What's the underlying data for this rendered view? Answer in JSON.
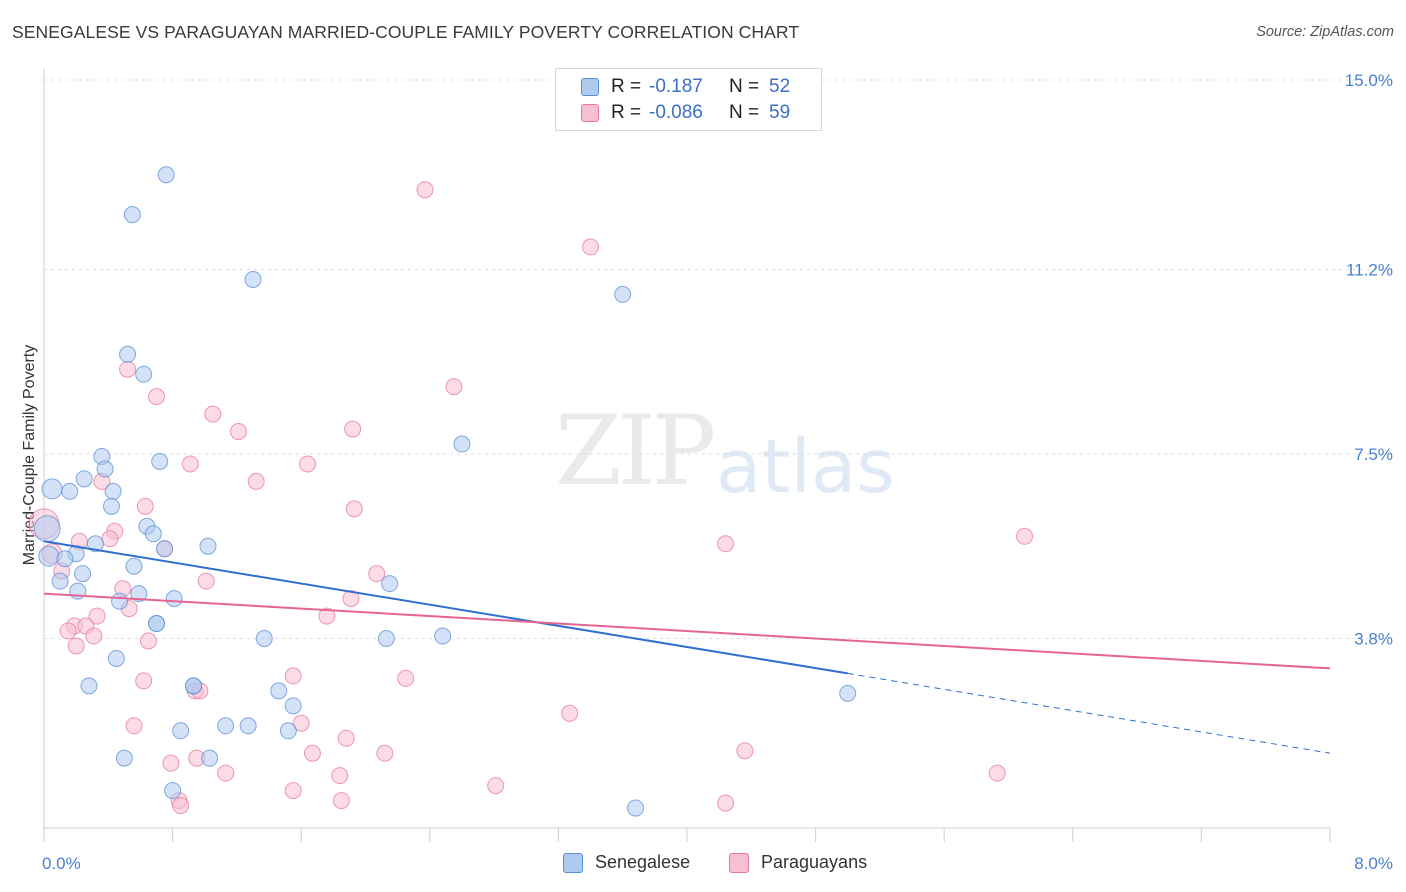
{
  "header": {
    "title": "SENEGALESE VS PARAGUAYAN MARRIED-COUPLE FAMILY POVERTY CORRELATION CHART",
    "source": "Source: ZipAtlas.com"
  },
  "watermark": {
    "zip": "ZIP",
    "atlas": "atlas"
  },
  "legend_top": [
    {
      "key": "R =",
      "r": "-0.187",
      "n_label": "N =",
      "n": "52",
      "color": "#a9c8f0"
    },
    {
      "key": "R =",
      "r": "-0.086",
      "n_label": "N =",
      "n": "59",
      "color": "#f5b8cc"
    }
  ],
  "legend_bottom": [
    {
      "label": "Senegalese",
      "color": "#a9c8f0"
    },
    {
      "label": "Paraguayans",
      "color": "#f5b8cc"
    }
  ],
  "colors": {
    "senegalese_fill": "#aecbef",
    "senegalese_stroke": "#5b8fd6",
    "senegalese_line": "#2f6fd0",
    "paraguayan_fill": "#f7bfd1",
    "paraguayan_stroke": "#e7789c",
    "paraguayan_line": "#e46592",
    "tick_label": "#4a7fd0",
    "grid": "#dcdcdc"
  },
  "chart_data": {
    "type": "scatter",
    "title": "SENEGALESE VS PARAGUAYAN MARRIED-COUPLE FAMILY POVERTY CORRELATION CHART",
    "xlabel": "",
    "ylabel": "Married-Couple Family Poverty",
    "xlim": [
      0,
      8.0
    ],
    "ylim": [
      0,
      15.0
    ],
    "x_tick_labels": [
      {
        "value": 0.0,
        "label": "0.0%"
      },
      {
        "value": 8.0,
        "label": "8.0%"
      }
    ],
    "y_tick_labels": [
      {
        "value": 3.8,
        "label": "3.8%"
      },
      {
        "value": 7.5,
        "label": "7.5%"
      },
      {
        "value": 11.2,
        "label": "11.2%"
      },
      {
        "value": 15.0,
        "label": "15.0%"
      }
    ],
    "x_minor_ticks": [
      0,
      0.8,
      1.6,
      2.4,
      3.2,
      4.0,
      4.8,
      5.6,
      6.4,
      7.2,
      8.0
    ],
    "grid": true,
    "legend": "top-center",
    "series": [
      {
        "name": "Senegalese",
        "r": -0.187,
        "n": 52,
        "trend": {
          "x0": 0.0,
          "y0": 5.75,
          "x1": 5.0,
          "y1": 3.1,
          "x_dash_end": 8.0,
          "y_dash_end": 1.5
        },
        "points": [
          [
            0.76,
            13.1,
            9
          ],
          [
            0.55,
            12.3,
            9
          ],
          [
            1.3,
            11.0,
            9
          ],
          [
            3.6,
            10.7,
            9
          ],
          [
            0.52,
            9.5,
            9
          ],
          [
            0.62,
            9.1,
            9
          ],
          [
            2.6,
            7.7,
            9
          ],
          [
            0.36,
            7.45,
            9
          ],
          [
            0.72,
            7.35,
            9
          ],
          [
            0.38,
            7.2,
            9
          ],
          [
            0.25,
            7.0,
            9
          ],
          [
            0.05,
            6.8,
            11
          ],
          [
            0.16,
            6.75,
            9
          ],
          [
            0.43,
            6.75,
            9
          ],
          [
            0.42,
            6.45,
            9
          ],
          [
            0.64,
            6.05,
            9
          ],
          [
            0.68,
            5.9,
            9
          ],
          [
            0.02,
            6.0,
            14
          ],
          [
            0.32,
            5.7,
            9
          ],
          [
            0.75,
            5.6,
            9
          ],
          [
            1.02,
            5.65,
            9
          ],
          [
            0.2,
            5.5,
            9
          ],
          [
            0.03,
            5.45,
            11
          ],
          [
            0.13,
            5.4,
            9
          ],
          [
            0.56,
            5.25,
            9
          ],
          [
            0.24,
            5.1,
            9
          ],
          [
            0.1,
            4.95,
            9
          ],
          [
            2.15,
            4.9,
            9
          ],
          [
            0.21,
            4.75,
            9
          ],
          [
            0.59,
            4.7,
            9
          ],
          [
            0.47,
            4.55,
            9
          ],
          [
            0.81,
            4.6,
            9
          ],
          [
            0.7,
            4.1,
            9
          ],
          [
            1.37,
            3.8,
            9
          ],
          [
            2.13,
            3.8,
            9
          ],
          [
            2.48,
            3.85,
            9
          ],
          [
            0.45,
            3.4,
            9
          ],
          [
            0.28,
            2.85,
            9
          ],
          [
            0.93,
            2.85,
            9
          ],
          [
            1.46,
            2.75,
            9
          ],
          [
            5.0,
            2.7,
            9
          ],
          [
            1.55,
            2.45,
            9
          ],
          [
            1.13,
            2.05,
            9
          ],
          [
            1.27,
            2.05,
            9
          ],
          [
            0.85,
            1.95,
            9
          ],
          [
            1.52,
            1.95,
            9
          ],
          [
            0.5,
            1.4,
            9
          ],
          [
            1.03,
            1.4,
            9
          ],
          [
            0.8,
            0.75,
            9
          ],
          [
            3.68,
            0.4,
            9
          ],
          [
            0.93,
            2.85,
            9
          ],
          [
            0.7,
            4.1,
            9
          ]
        ]
      },
      {
        "name": "Paraguayans",
        "r": -0.086,
        "n": 59,
        "trend": {
          "x0": 0.0,
          "y0": 4.7,
          "x1": 8.0,
          "y1": 3.2
        },
        "points": [
          [
            2.37,
            12.8,
            9
          ],
          [
            3.4,
            11.65,
            9
          ],
          [
            0.52,
            9.2,
            9
          ],
          [
            2.55,
            8.85,
            9
          ],
          [
            0.7,
            8.65,
            9
          ],
          [
            1.05,
            8.3,
            9
          ],
          [
            1.21,
            7.95,
            9
          ],
          [
            1.92,
            8.0,
            9
          ],
          [
            0.91,
            7.3,
            9
          ],
          [
            1.64,
            7.3,
            9
          ],
          [
            0.36,
            6.95,
            9
          ],
          [
            1.32,
            6.95,
            9
          ],
          [
            0.63,
            6.45,
            9
          ],
          [
            1.93,
            6.4,
            9
          ],
          [
            0.0,
            6.1,
            16
          ],
          [
            0.44,
            5.95,
            9
          ],
          [
            0.41,
            5.8,
            9
          ],
          [
            0.22,
            5.75,
            9
          ],
          [
            4.24,
            5.7,
            9
          ],
          [
            6.1,
            5.85,
            9
          ],
          [
            0.75,
            5.6,
            9
          ],
          [
            0.05,
            5.5,
            11
          ],
          [
            0.11,
            5.15,
            9
          ],
          [
            2.07,
            5.1,
            9
          ],
          [
            1.01,
            4.95,
            9
          ],
          [
            0.49,
            4.8,
            9
          ],
          [
            1.91,
            4.6,
            9
          ],
          [
            0.53,
            4.4,
            9
          ],
          [
            1.76,
            4.25,
            9
          ],
          [
            0.33,
            4.25,
            9
          ],
          [
            0.19,
            4.05,
            9
          ],
          [
            0.26,
            4.05,
            9
          ],
          [
            0.31,
            3.85,
            9
          ],
          [
            0.15,
            3.95,
            9
          ],
          [
            0.65,
            3.75,
            9
          ],
          [
            0.2,
            3.65,
            9
          ],
          [
            1.55,
            3.05,
            9
          ],
          [
            2.25,
            3.0,
            9
          ],
          [
            0.62,
            2.95,
            9
          ],
          [
            0.94,
            2.75,
            9
          ],
          [
            0.97,
            2.75,
            9
          ],
          [
            3.27,
            2.3,
            9
          ],
          [
            1.6,
            2.1,
            9
          ],
          [
            0.56,
            2.05,
            9
          ],
          [
            1.88,
            1.8,
            9
          ],
          [
            1.67,
            1.5,
            9
          ],
          [
            2.12,
            1.5,
            9
          ],
          [
            4.36,
            1.55,
            9
          ],
          [
            0.79,
            1.3,
            9
          ],
          [
            0.95,
            1.4,
            9
          ],
          [
            1.13,
            1.1,
            9
          ],
          [
            1.84,
            1.05,
            9
          ],
          [
            5.93,
            1.1,
            9
          ],
          [
            2.81,
            0.85,
            9
          ],
          [
            1.55,
            0.75,
            9
          ],
          [
            0.84,
            0.55,
            9
          ],
          [
            0.85,
            0.45,
            9
          ],
          [
            1.85,
            0.55,
            9
          ],
          [
            4.24,
            0.5,
            9
          ]
        ]
      }
    ]
  }
}
